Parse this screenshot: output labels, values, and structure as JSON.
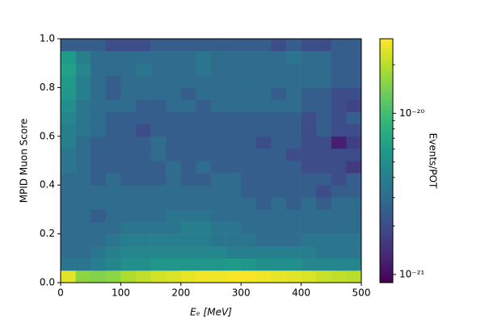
{
  "chart_data": {
    "type": "heatmap",
    "x_label": "Eₑ [MeV]",
    "y_label": "MPID Muon Score",
    "colorbar_label": "Events/POT",
    "colormap": "viridis",
    "color_scale": "log",
    "xbins": [
      0,
      25,
      50,
      75,
      100,
      125,
      150,
      175,
      200,
      225,
      250,
      275,
      300,
      325,
      350,
      375,
      400,
      425,
      450,
      475,
      500
    ],
    "ybins": [
      0,
      0.05,
      0.1,
      0.15,
      0.2,
      0.25,
      0.3,
      0.35,
      0.4,
      0.45,
      0.5,
      0.55,
      0.6,
      0.65,
      0.7,
      0.75,
      0.8,
      0.85,
      0.9,
      0.95,
      1
    ],
    "xlim": [
      0,
      500
    ],
    "ylim": [
      0,
      1
    ],
    "xticks": [
      0,
      100,
      200,
      300,
      400,
      500
    ],
    "yticks": [
      {
        "value": 0,
        "label": "0.0"
      },
      0.2,
      0.4,
      0.6,
      0.8,
      {
        "value": 1,
        "label": "1.0"
      }
    ],
    "clim": [
      8.9e-22,
      2.9e-20
    ],
    "cticks": [
      {
        "value": 1e-21,
        "label": "10⁻²¹"
      },
      {
        "value": 1e-20,
        "label": "10⁻²⁰"
      }
    ],
    "cticks_minor": [
      2e-21,
      3e-21,
      4e-21,
      5e-21,
      6e-21,
      7e-21,
      8e-21,
      9e-21,
      2e-20
    ],
    "z": [
      [
        2.5e-20,
        1.6e-20,
        1.5e-20,
        1.6e-20,
        1.9e-20,
        2.1e-20,
        2.3e-20,
        2.4e-20,
        2.6e-20,
        2.7e-20,
        2.7e-20,
        2.8e-20,
        2.8e-20,
        2.7e-20,
        2.6e-20,
        2.5e-20,
        2.4e-20,
        2.2e-20,
        2.1e-20,
        2e-20
      ],
      [
        3.5e-21,
        3.5e-21,
        4e-21,
        4.5e-21,
        5e-21,
        5e-21,
        5.5e-21,
        5.5e-21,
        5.5e-21,
        5.5e-21,
        5.5e-21,
        6e-21,
        5.5e-21,
        5e-21,
        5e-21,
        5e-21,
        4.5e-21,
        4.5e-21,
        4.5e-21,
        4.5e-21
      ],
      [
        3e-21,
        3e-21,
        3.5e-21,
        4e-21,
        4.5e-21,
        4.5e-21,
        4.5e-21,
        4.5e-21,
        4.5e-21,
        4.5e-21,
        4.5e-21,
        4e-21,
        4e-21,
        4e-21,
        4e-21,
        4e-21,
        4e-21,
        3.5e-21,
        3.5e-21,
        3.5e-21
      ],
      [
        3e-21,
        3e-21,
        3e-21,
        3.5e-21,
        4e-21,
        4e-21,
        4e-21,
        4e-21,
        4e-21,
        4e-21,
        3.5e-21,
        3.5e-21,
        3.5e-21,
        3e-21,
        3e-21,
        3e-21,
        3.5e-21,
        3.5e-21,
        3.5e-21,
        3.5e-21
      ],
      [
        3e-21,
        3e-21,
        3e-21,
        3e-21,
        3.5e-21,
        3.5e-21,
        3.5e-21,
        3.5e-21,
        4e-21,
        4e-21,
        3.5e-21,
        3.5e-21,
        3e-21,
        3e-21,
        3e-21,
        3e-21,
        3e-21,
        3e-21,
        3e-21,
        3e-21
      ],
      [
        3e-21,
        3e-21,
        2.5e-21,
        3e-21,
        3e-21,
        3e-21,
        3e-21,
        3.5e-21,
        3.5e-21,
        3.5e-21,
        3e-21,
        3e-21,
        3e-21,
        3e-21,
        3e-21,
        3e-21,
        3e-21,
        3e-21,
        3e-21,
        3e-21
      ],
      [
        3e-21,
        3e-21,
        3e-21,
        3e-21,
        3e-21,
        3e-21,
        3e-21,
        3e-21,
        3e-21,
        3e-21,
        3e-21,
        3e-21,
        3e-21,
        2.5e-21,
        3e-21,
        2.5e-21,
        3e-21,
        2.5e-21,
        3e-21,
        3e-21
      ],
      [
        3e-21,
        3e-21,
        3e-21,
        3e-21,
        3e-21,
        3e-21,
        3e-21,
        3e-21,
        3e-21,
        3e-21,
        3e-21,
        3e-21,
        2.5e-21,
        2.5e-21,
        2.5e-21,
        2.5e-21,
        2.5e-21,
        2e-21,
        2.5e-21,
        2.5e-21
      ],
      [
        3e-21,
        3e-21,
        2.5e-21,
        3e-21,
        2.5e-21,
        2.5e-21,
        2.5e-21,
        3e-21,
        2.5e-21,
        2.5e-21,
        3e-21,
        3e-21,
        2.5e-21,
        2.5e-21,
        2.5e-21,
        2.5e-21,
        2.5e-21,
        2.5e-21,
        2e-21,
        2.5e-21
      ],
      [
        3.5e-21,
        3e-21,
        2.5e-21,
        2.5e-21,
        2.5e-21,
        2.5e-21,
        2.5e-21,
        3e-21,
        2.5e-21,
        3e-21,
        2.5e-21,
        2.5e-21,
        2.5e-21,
        2.5e-21,
        2.5e-21,
        2.5e-21,
        2e-21,
        2e-21,
        2e-21,
        1.6e-21
      ],
      [
        3.5e-21,
        3e-21,
        2.5e-21,
        2.5e-21,
        2.5e-21,
        2.5e-21,
        3e-21,
        2.5e-21,
        2.5e-21,
        2.5e-21,
        2.5e-21,
        2.5e-21,
        2.5e-21,
        2.5e-21,
        2.5e-21,
        2e-21,
        2e-21,
        2e-21,
        2e-21,
        2e-21
      ],
      [
        4e-21,
        3e-21,
        2.5e-21,
        2.5e-21,
        2.5e-21,
        2.5e-21,
        3e-21,
        2.5e-21,
        2.5e-21,
        2.5e-21,
        2.5e-21,
        2.5e-21,
        2.5e-21,
        2e-21,
        2.5e-21,
        2.5e-21,
        2e-21,
        2e-21,
        1.2e-21,
        1.7e-21
      ],
      [
        4e-21,
        3.5e-21,
        3e-21,
        2.5e-21,
        2.5e-21,
        2e-21,
        2.5e-21,
        2.5e-21,
        2.5e-21,
        2.5e-21,
        2.5e-21,
        2.5e-21,
        2.5e-21,
        2.5e-21,
        2.5e-21,
        2.5e-21,
        2e-21,
        2.5e-21,
        2e-21,
        2e-21
      ],
      [
        4.5e-21,
        3.5e-21,
        3e-21,
        2.5e-21,
        2.5e-21,
        2.5e-21,
        2.5e-21,
        2.5e-21,
        2.5e-21,
        2.5e-21,
        2.5e-21,
        2.5e-21,
        2.5e-21,
        2.5e-21,
        2.5e-21,
        2.5e-21,
        2e-21,
        2.5e-21,
        2e-21,
        2.5e-21
      ],
      [
        5e-21,
        3.5e-21,
        3e-21,
        3e-21,
        3e-21,
        2.5e-21,
        2.5e-21,
        3e-21,
        3e-21,
        2.5e-21,
        3e-21,
        3e-21,
        3e-21,
        3e-21,
        3e-21,
        3e-21,
        2.5e-21,
        2.5e-21,
        2e-21,
        1.8e-21
      ],
      [
        5.5e-21,
        4e-21,
        3e-21,
        2.5e-21,
        3e-21,
        3e-21,
        3e-21,
        3e-21,
        2.5e-21,
        3e-21,
        3e-21,
        3e-21,
        3e-21,
        3e-21,
        2.5e-21,
        3e-21,
        2.5e-21,
        2.5e-21,
        2e-21,
        2e-21
      ],
      [
        6e-21,
        4e-21,
        3e-21,
        2.5e-21,
        3e-21,
        3e-21,
        3e-21,
        3e-21,
        3e-21,
        3e-21,
        3e-21,
        3e-21,
        3e-21,
        3e-21,
        3e-21,
        3e-21,
        3e-21,
        3e-21,
        2.5e-21,
        2.5e-21
      ],
      [
        6.5e-21,
        4.5e-21,
        3e-21,
        3e-21,
        3e-21,
        3.5e-21,
        3e-21,
        3e-21,
        3e-21,
        3.5e-21,
        3e-21,
        3e-21,
        3e-21,
        3e-21,
        3e-21,
        3e-21,
        3e-21,
        3e-21,
        2.5e-21,
        2.5e-21
      ],
      [
        6e-21,
        4e-21,
        3e-21,
        3e-21,
        3e-21,
        3e-21,
        3e-21,
        3e-21,
        3e-21,
        3.5e-21,
        3e-21,
        3e-21,
        3e-21,
        3e-21,
        3e-21,
        3.5e-21,
        3e-21,
        3e-21,
        2.5e-21,
        2.5e-21
      ],
      [
        2.5e-21,
        2.5e-21,
        2.5e-21,
        2e-21,
        2e-21,
        2e-21,
        2.5e-21,
        2.5e-21,
        2.5e-21,
        2.5e-21,
        2.5e-21,
        2.5e-21,
        2.5e-21,
        2.5e-21,
        2e-21,
        2.5e-21,
        2e-21,
        2e-21,
        2.5e-21,
        2.5e-21
      ]
    ]
  }
}
